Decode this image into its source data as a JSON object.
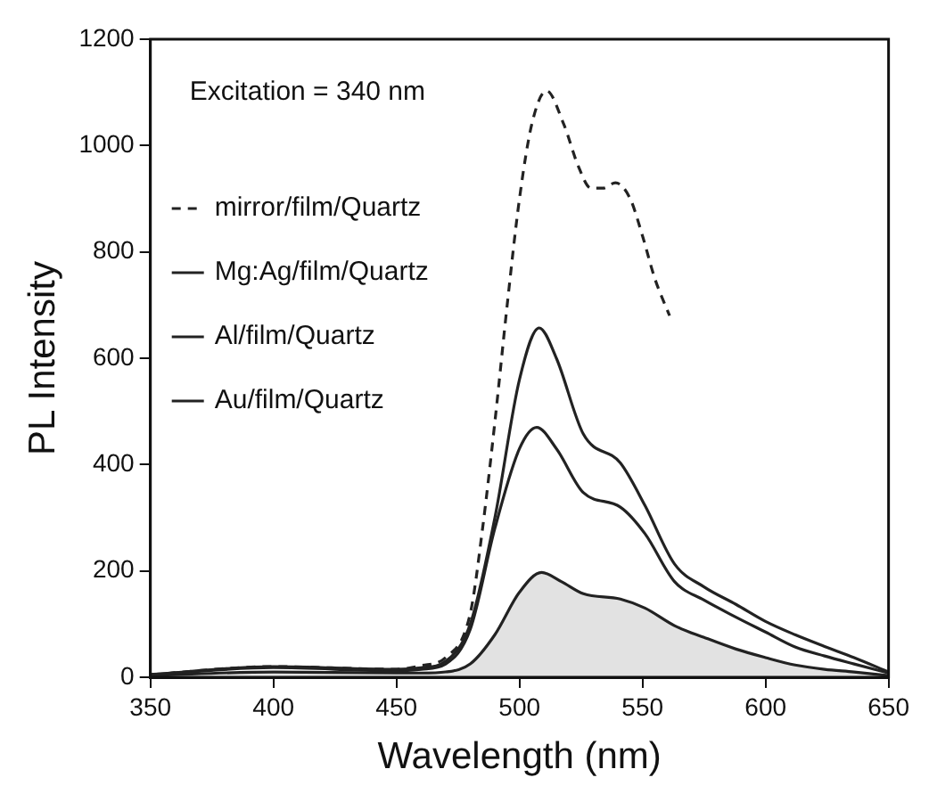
{
  "chart_data": {
    "type": "line",
    "xlabel": "Wavelength (nm)",
    "ylabel": "PL Intensity",
    "annotations": [
      "Excitation = 340 nm"
    ],
    "xlim": [
      350,
      650
    ],
    "xticks": [
      350,
      400,
      450,
      500,
      550,
      600,
      650
    ],
    "ylim": [
      0,
      1200
    ],
    "yticks": [
      0,
      200,
      400,
      600,
      800,
      1000,
      1200
    ],
    "grid": false,
    "legend": "top left",
    "marker": "none",
    "series": [
      {
        "name": "mirror/film/Quartz",
        "color": "#222222",
        "line_style": "dashed",
        "x": [
          350,
          400,
          450,
          460,
          470,
          480,
          485,
          490,
          495,
          500,
          505,
          511,
          518,
          524,
          529,
          534,
          539,
          545,
          550,
          555,
          561
        ],
        "values": [
          5,
          20,
          15,
          22,
          37,
          120,
          280,
          480,
          700,
          900,
          1040,
          1103,
          1040,
          960,
          920,
          920,
          930,
          900,
          830,
          750,
          680
        ]
      },
      {
        "name": "Mg:Ag/film/Quartz",
        "color": "#222222",
        "line_style": "solid",
        "x": [
          350,
          400,
          450,
          460,
          470,
          480,
          490,
          500,
          508,
          515,
          526,
          541,
          551,
          563,
          575,
          588,
          600,
          612,
          624,
          636,
          650
        ],
        "values": [
          5,
          20,
          15,
          18,
          30,
          100,
          300,
          560,
          657,
          600,
          457,
          403,
          323,
          213,
          170,
          137,
          105,
          80,
          58,
          37,
          10
        ]
      },
      {
        "name": "Al/film/Quartz",
        "color": "#222222",
        "line_style": "solid",
        "x": [
          350,
          400,
          450,
          460,
          470,
          480,
          490,
          500,
          507,
          515,
          526,
          541,
          551,
          563,
          575,
          588,
          600,
          612,
          624,
          636,
          650
        ],
        "values": [
          5,
          18,
          12,
          15,
          25,
          90,
          280,
          430,
          470,
          430,
          347,
          320,
          270,
          180,
          145,
          113,
          85,
          57,
          40,
          25,
          8
        ]
      },
      {
        "name": "Au/film/Quartz",
        "type": "area",
        "color": "#222222",
        "line_style": "solid",
        "x": [
          350,
          400,
          450,
          460,
          470,
          480,
          490,
          500,
          509,
          517,
          526,
          541,
          551,
          563,
          575,
          588,
          600,
          612,
          624,
          636,
          650
        ],
        "values": [
          3,
          10,
          8,
          8,
          10,
          25,
          80,
          160,
          197,
          180,
          157,
          147,
          130,
          97,
          75,
          53,
          37,
          23,
          15,
          10,
          3
        ]
      }
    ]
  }
}
